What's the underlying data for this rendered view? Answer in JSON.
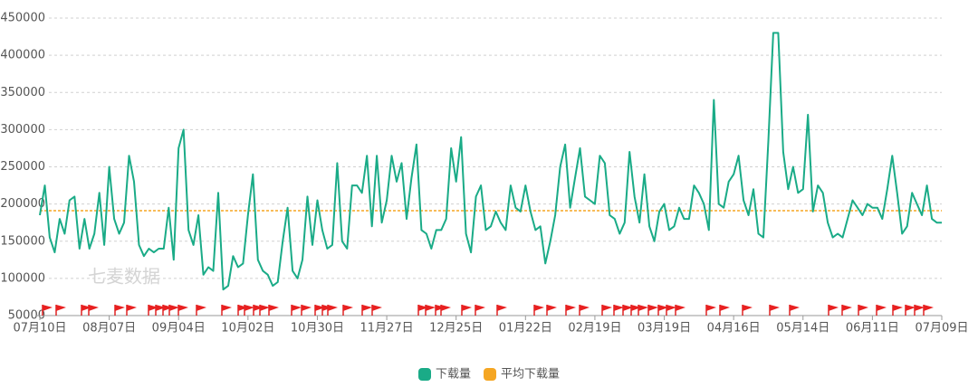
{
  "chart_data": {
    "type": "line",
    "watermark": "七麦数据",
    "categories": [
      "07月10日",
      null,
      null,
      null,
      null,
      null,
      null,
      null,
      null,
      null,
      null,
      null,
      null,
      null,
      "08月07日",
      null,
      null,
      null,
      null,
      null,
      null,
      null,
      null,
      null,
      null,
      null,
      null,
      null,
      "09月04日",
      null,
      null,
      null,
      null,
      null,
      null,
      null,
      null,
      null,
      null,
      null,
      null,
      null,
      "10月02日",
      null,
      null,
      null,
      null,
      null,
      null,
      null,
      null,
      null,
      null,
      null,
      null,
      null,
      "10月30日",
      null,
      null,
      null,
      null,
      null,
      null,
      null,
      null,
      null,
      null,
      null,
      null,
      null,
      "11月27日",
      null,
      null,
      null,
      null,
      null,
      null,
      null,
      null,
      null,
      null,
      null,
      null,
      null,
      "12月25日",
      null,
      null,
      null,
      null,
      null,
      null,
      null,
      null,
      null,
      null,
      null,
      null,
      null,
      "01月22日",
      null,
      null,
      null,
      null,
      null,
      null,
      null,
      null,
      null,
      null,
      null,
      null,
      null,
      "02月19日",
      null,
      null,
      null,
      null,
      null,
      null,
      null,
      null,
      null,
      null,
      null,
      null,
      null,
      "03月19日",
      null,
      null,
      null,
      null,
      null,
      null,
      null,
      null,
      null,
      null,
      null,
      null,
      null,
      "04月16日",
      null,
      null,
      null,
      null,
      null,
      null,
      null,
      null,
      null,
      null,
      null,
      null,
      null,
      "05月14日",
      null,
      null,
      null,
      null,
      null,
      null,
      null,
      null,
      null,
      null,
      null,
      null,
      null,
      "06月11日",
      null,
      null,
      null,
      null,
      null,
      null,
      null,
      null,
      null,
      null,
      null,
      null,
      null,
      "07月09日"
    ],
    "series": [
      {
        "name": "下载量",
        "color": "#1aab87",
        "values": [
          185000,
          225000,
          155000,
          135000,
          180000,
          160000,
          205000,
          210000,
          140000,
          180000,
          140000,
          160000,
          215000,
          145000,
          250000,
          180000,
          160000,
          175000,
          265000,
          230000,
          145000,
          130000,
          140000,
          135000,
          140000,
          140000,
          195000,
          125000,
          275000,
          300000,
          165000,
          145000,
          185000,
          105000,
          115000,
          110000,
          215000,
          85000,
          90000,
          130000,
          115000,
          120000,
          185000,
          240000,
          125000,
          110000,
          105000,
          90000,
          95000,
          150000,
          195000,
          110000,
          100000,
          125000,
          210000,
          145000,
          205000,
          165000,
          140000,
          145000,
          255000,
          150000,
          140000,
          225000,
          225000,
          215000,
          265000,
          170000,
          265000,
          175000,
          205000,
          265000,
          230000,
          255000,
          180000,
          235000,
          280000,
          165000,
          160000,
          140000,
          165000,
          165000,
          180000,
          275000,
          230000,
          290000,
          160000,
          135000,
          210000,
          225000,
          165000,
          170000,
          190000,
          175000,
          165000,
          225000,
          195000,
          190000,
          225000,
          190000,
          165000,
          170000,
          120000,
          150000,
          185000,
          250000,
          280000,
          195000,
          235000,
          275000,
          210000,
          205000,
          200000,
          265000,
          255000,
          185000,
          180000,
          160000,
          175000,
          270000,
          210000,
          175000,
          240000,
          170000,
          150000,
          190000,
          200000,
          165000,
          170000,
          195000,
          180000,
          180000,
          225000,
          215000,
          200000,
          165000,
          340000,
          200000,
          195000,
          230000,
          240000,
          265000,
          205000,
          185000,
          220000,
          160000,
          155000,
          285000,
          430000,
          430000,
          270000,
          220000,
          250000,
          215000,
          220000,
          320000,
          190000,
          225000,
          215000,
          175000,
          155000,
          160000,
          155000,
          180000,
          205000,
          195000,
          185000,
          200000,
          195000,
          195000,
          180000,
          220000,
          265000,
          215000,
          160000,
          170000,
          215000,
          200000,
          185000,
          225000,
          180000,
          175000,
          175000
        ]
      }
    ],
    "average_line": {
      "name": "平均下载量",
      "color": "#f5a623",
      "value": 191000
    },
    "ylim": [
      50000,
      450000
    ],
    "yticks": [
      50000,
      100000,
      150000,
      200000,
      250000,
      300000,
      350000,
      400000,
      450000
    ],
    "grid": true,
    "legend": "bottom"
  }
}
